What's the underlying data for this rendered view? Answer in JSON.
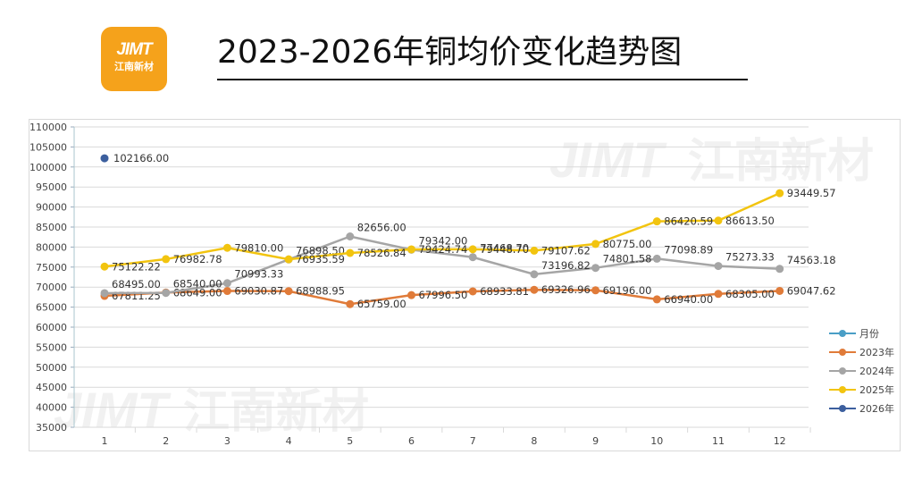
{
  "header": {
    "logo_mark": "JIMT",
    "logo_text": "江南新材",
    "title": "2023-2026年铜均价变化趋势图"
  },
  "watermark": {
    "mark": "JIMT",
    "text": "江南新材"
  },
  "legend": [
    {
      "label": "月份",
      "color": "#4a9ec6"
    },
    {
      "label": "2023年",
      "color": "#e07b39"
    },
    {
      "label": "2024年",
      "color": "#a5a5a5"
    },
    {
      "label": "2025年",
      "color": "#f2c40f"
    },
    {
      "label": "2026年",
      "color": "#3c5f9e"
    }
  ],
  "chart_data": {
    "type": "line",
    "title": "2023-2026年铜均价变化趋势图",
    "xlabel": "",
    "ylabel": "",
    "categories": [
      "1",
      "2",
      "3",
      "4",
      "5",
      "6",
      "7",
      "8",
      "9",
      "10",
      "11",
      "12"
    ],
    "ylim": [
      35000,
      110000
    ],
    "yticks": [
      35000,
      40000,
      45000,
      50000,
      55000,
      60000,
      65000,
      70000,
      75000,
      80000,
      85000,
      90000,
      95000,
      100000,
      105000,
      110000
    ],
    "grid": true,
    "legend_position": "right",
    "series": [
      {
        "name": "2023年",
        "color": "#e07b39",
        "values": [
          67811.25,
          68649.0,
          69030.87,
          68988.95,
          65759.0,
          67996.5,
          68933.81,
          69326.96,
          69196.0,
          66940.0,
          68305.0,
          69047.62
        ],
        "labels": [
          "67811.25",
          "68649.00",
          "69030.87",
          "68988.95",
          "65759.00",
          "67996.50",
          "68933.81",
          "69326.96",
          "69196.00",
          "66940.00",
          "68305.00",
          "69047.62"
        ]
      },
      {
        "name": "2024年",
        "color": "#a5a5a5",
        "values": [
          68495.0,
          68540.0,
          70993.33,
          76898.5,
          82656.0,
          79342.0,
          77468.7,
          73196.82,
          74801.58,
          77098.89,
          75273.33,
          74563.18
        ],
        "labels": [
          "68495.00",
          "68540.00",
          "70993.33",
          "76898.50",
          "82656.00",
          "79342.00",
          "77468.70",
          "73196.82",
          "74801.58",
          "77098.89",
          "75273.33",
          "74563.18"
        ]
      },
      {
        "name": "2025年",
        "color": "#f2c40f",
        "values": [
          75122.22,
          76982.78,
          79810.0,
          76935.59,
          78526.84,
          79424.74,
          79448.7,
          79107.62,
          80775.0,
          86420.59,
          86613.5,
          93449.57
        ],
        "labels": [
          "75122.22",
          "76982.78",
          "79810.00",
          "76935.59",
          "78526.84",
          "79424.74",
          "79448.70",
          "79107.62",
          "80775.00",
          "86420.59",
          "86613.50",
          "93449.57"
        ]
      },
      {
        "name": "2026年",
        "color": "#3c5f9e",
        "values": [
          102166.0,
          null,
          null,
          null,
          null,
          null,
          null,
          null,
          null,
          null,
          null,
          null
        ],
        "labels": [
          "102166.00"
        ]
      },
      {
        "name": "月份",
        "color": "#4a9ec6",
        "values": []
      }
    ]
  }
}
